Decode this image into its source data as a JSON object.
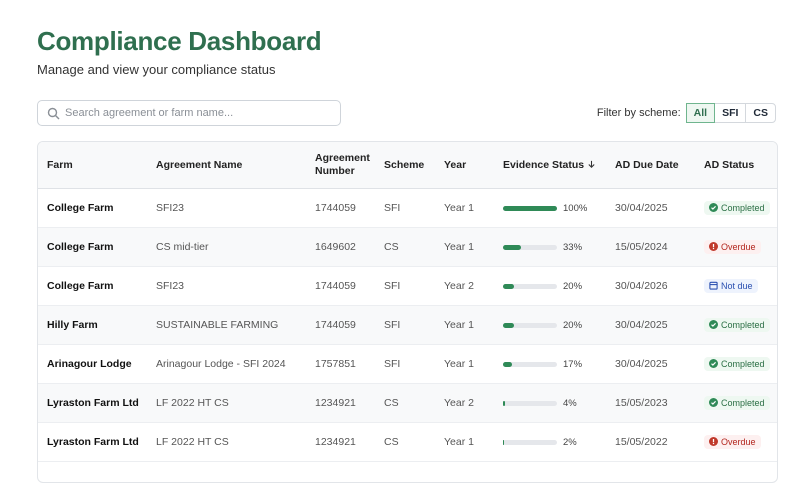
{
  "header": {
    "title": "Compliance Dashboard",
    "subtitle": "Manage and view your compliance status"
  },
  "search": {
    "placeholder": "Search agreement or farm name..."
  },
  "filter": {
    "label": "Filter by scheme:",
    "options": [
      "All",
      "SFI",
      "CS"
    ],
    "selected": 0
  },
  "table": {
    "columns": [
      "Farm",
      "Agreement Name",
      "Agreement Number",
      "Scheme",
      "Year",
      "Evidence Status",
      "AD Due Date",
      "AD Status"
    ],
    "sorted_column": 5,
    "rows": [
      {
        "farm": "College Farm",
        "agreement": "SFI23",
        "number": "1744059",
        "scheme": "SFI",
        "year": "Year 1",
        "evidence": {
          "value": 100,
          "label": "100%"
        },
        "due": "30/04/2025",
        "status": "Completed"
      },
      {
        "farm": "College Farm",
        "agreement": "CS mid-tier",
        "number": "1649602",
        "scheme": "CS",
        "year": "Year 1",
        "evidence": {
          "value": 33,
          "label": "33%"
        },
        "due": "15/05/2024",
        "status": "Overdue"
      },
      {
        "farm": "College Farm",
        "agreement": "SFI23",
        "number": "1744059",
        "scheme": "SFI",
        "year": "Year 2",
        "evidence": {
          "value": 20,
          "label": "20%"
        },
        "due": "30/04/2026",
        "status": "Not due"
      },
      {
        "farm": "Hilly Farm",
        "agreement": "SUSTAINABLE FARMING",
        "number": "1744059",
        "scheme": "SFI",
        "year": "Year 1",
        "evidence": {
          "value": 20,
          "label": "20%"
        },
        "due": "30/04/2025",
        "status": "Completed"
      },
      {
        "farm": "Arinagour Lodge",
        "agreement": "Arinagour Lodge - SFI 2024",
        "number": "1757851",
        "scheme": "SFI",
        "year": "Year 1",
        "evidence": {
          "value": 17,
          "label": "17%"
        },
        "due": "30/04/2025",
        "status": "Completed"
      },
      {
        "farm": "Lyraston Farm Ltd",
        "agreement": "LF 2022 HT CS",
        "number": "1234921",
        "scheme": "CS",
        "year": "Year 2",
        "evidence": {
          "value": 4,
          "label": "4%"
        },
        "due": "15/05/2023",
        "status": "Completed"
      },
      {
        "farm": "Lyraston Farm Ltd",
        "agreement": "LF 2022 HT CS",
        "number": "1234921",
        "scheme": "CS",
        "year": "Year 1",
        "evidence": {
          "value": 2,
          "label": "2%"
        },
        "due": "15/05/2022",
        "status": "Overdue"
      }
    ]
  }
}
